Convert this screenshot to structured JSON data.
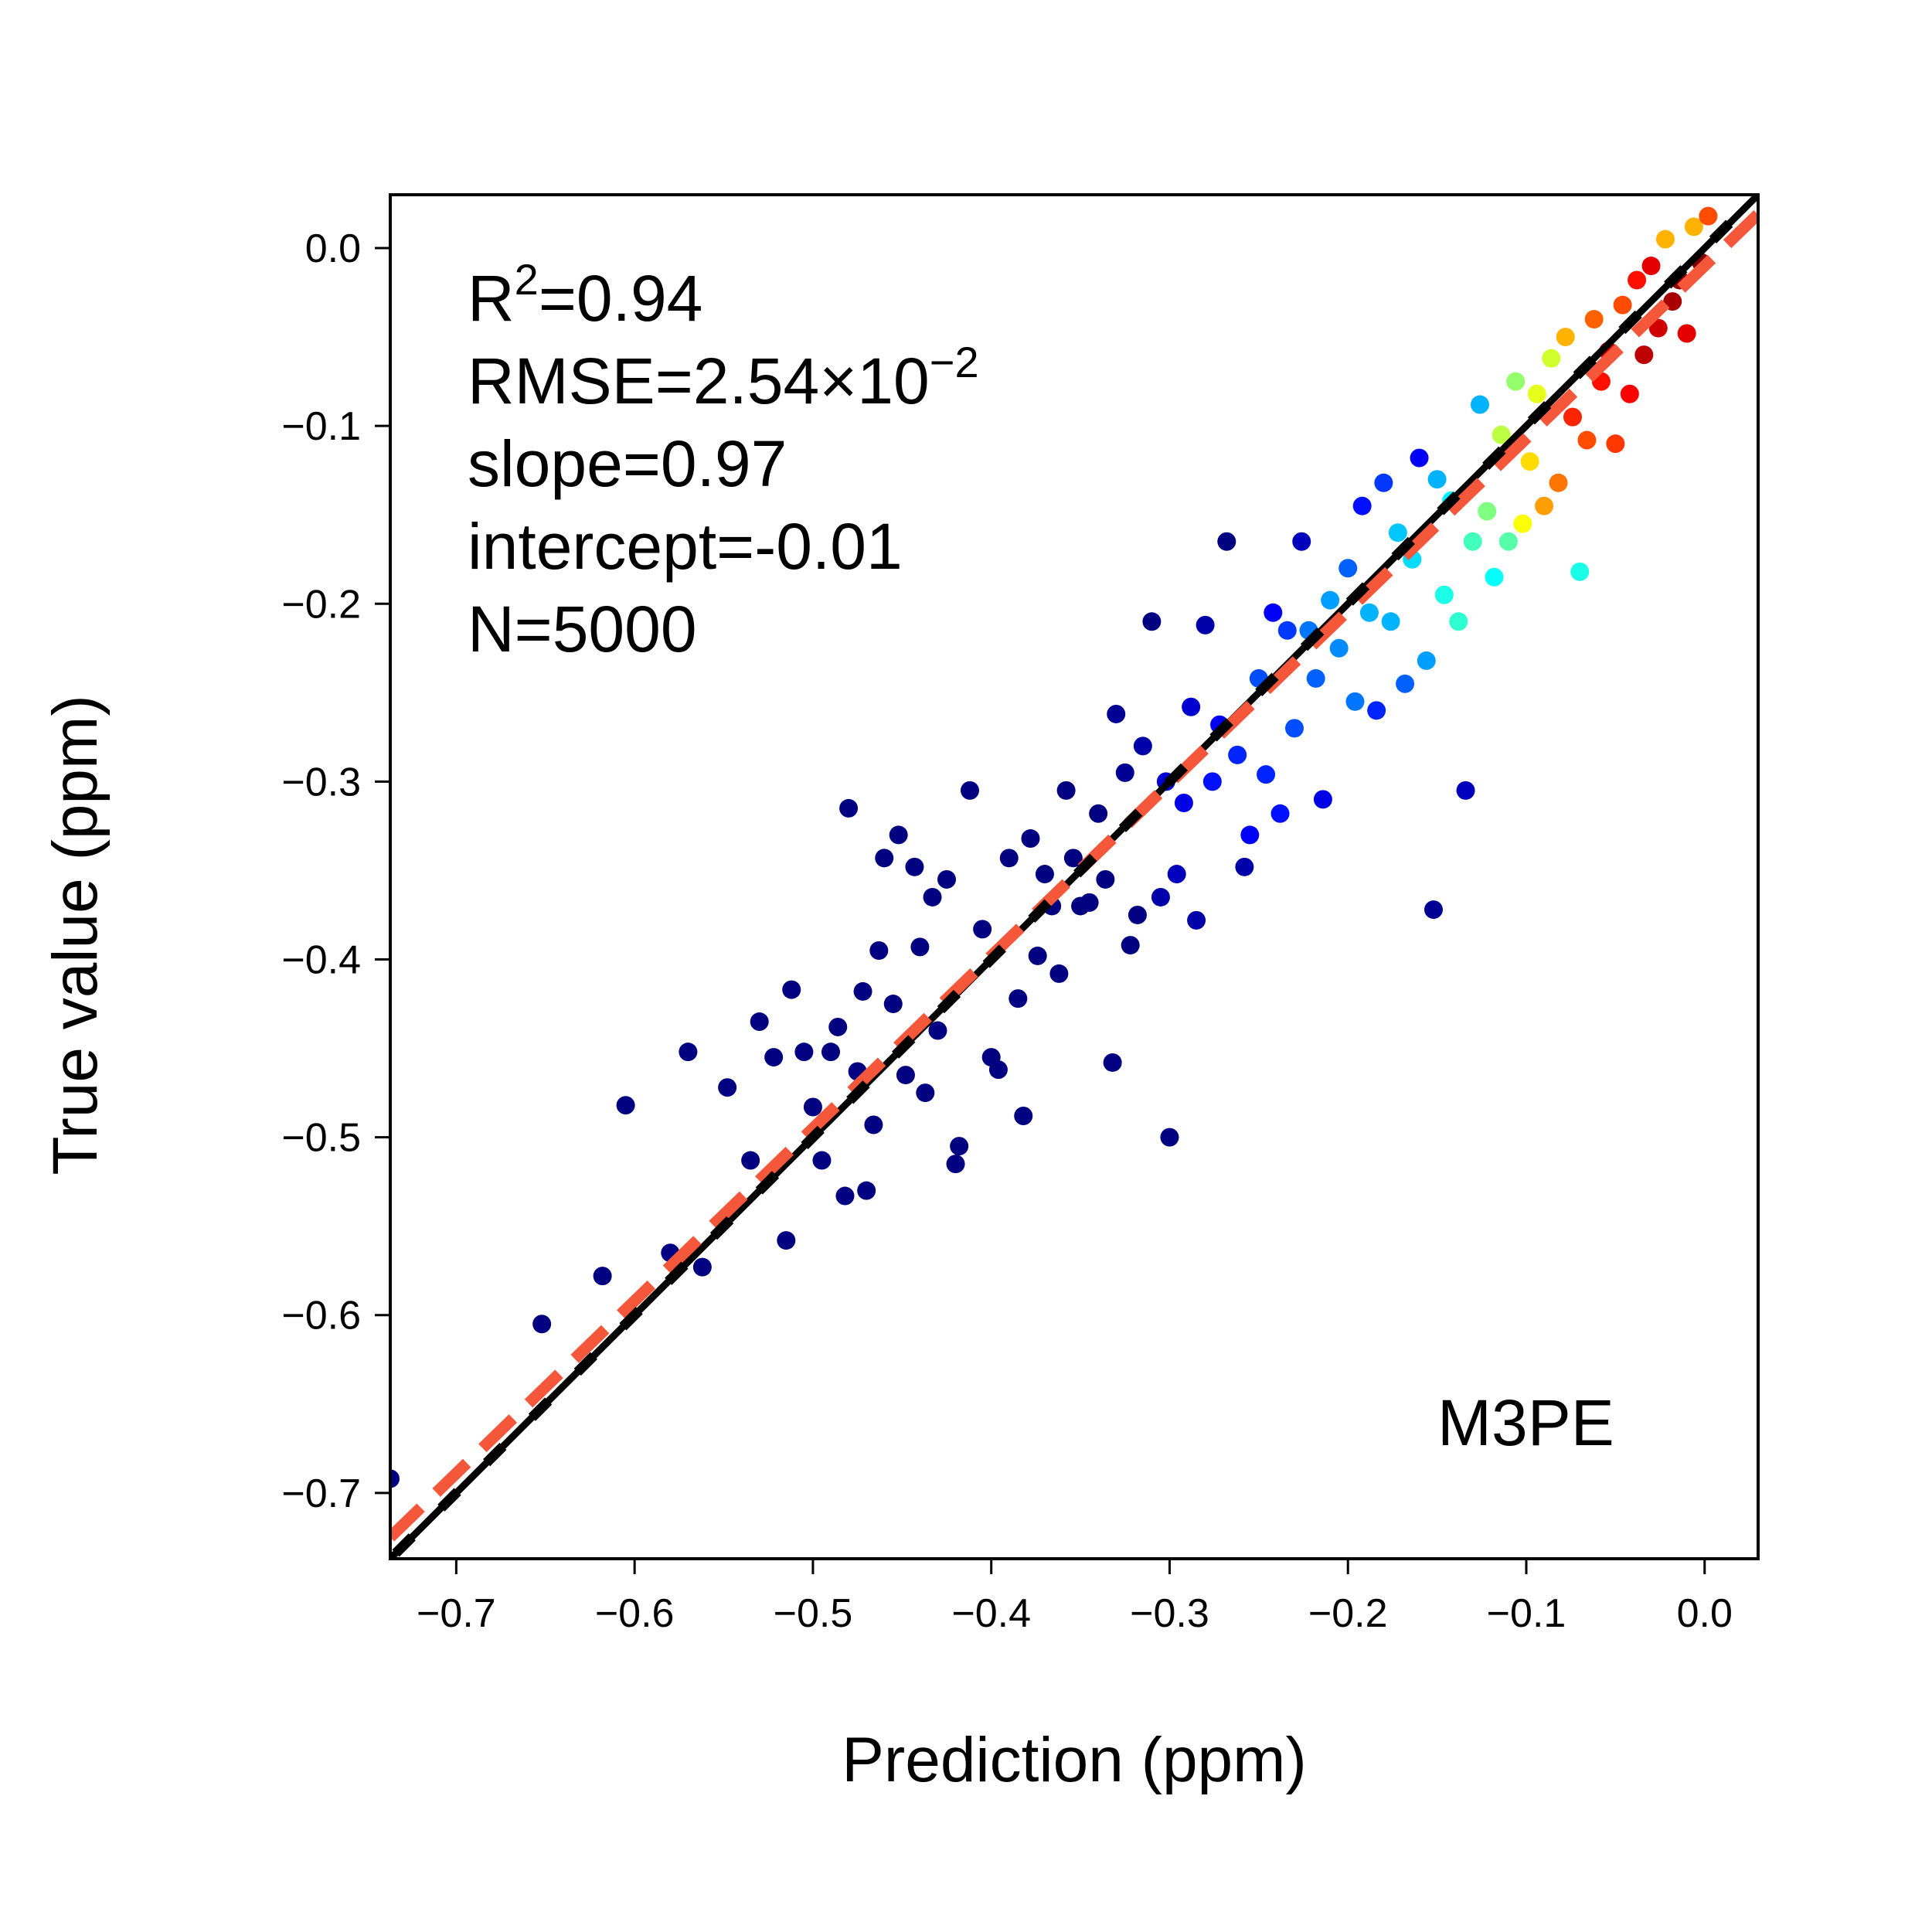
{
  "chart_data": {
    "type": "scatter",
    "title": "",
    "xlabel": "Prediction (ppm)",
    "ylabel": "True value (ppm)",
    "xlim": [
      -0.737,
      0.03
    ],
    "ylim": [
      -0.737,
      0.03
    ],
    "xticks": [
      -0.7,
      -0.6,
      -0.5,
      -0.4,
      -0.3,
      -0.2,
      -0.1,
      0.0
    ],
    "yticks": [
      -0.7,
      -0.6,
      -0.5,
      -0.4,
      -0.3,
      -0.2,
      -0.1,
      0.0
    ],
    "xtick_labels": [
      "−0.7",
      "−0.6",
      "−0.5",
      "−0.4",
      "−0.3",
      "−0.2",
      "−0.1",
      "0.0"
    ],
    "ytick_labels": [
      "−0.7",
      "−0.6",
      "−0.5",
      "−0.4",
      "−0.3",
      "−0.2",
      "−0.1",
      "0.0"
    ],
    "grid": false,
    "colormap": "jet (point density)",
    "stats": {
      "r2_prefix": "R",
      "r2_sup": "2",
      "r2_value": "=0.94",
      "rmse_prefix": "RMSE=2.54×10",
      "rmse_sup": "−2",
      "slope": "slope=0.97",
      "intercept": "intercept=-0.01",
      "n": "N=5000"
    },
    "model_label": "M3PE",
    "lines": [
      {
        "kind": "identity",
        "slope": 1.0,
        "intercept": 0.0,
        "color": "#000000",
        "style": "solid"
      },
      {
        "kind": "fit",
        "slope": 0.97,
        "intercept": -0.01,
        "color": "#f4573a",
        "style": "dashed"
      }
    ],
    "points_x": [
      -0.737,
      -0.652,
      -0.618,
      -0.605,
      -0.58,
      -0.562,
      -0.57,
      -0.548,
      -0.535,
      -0.53,
      -0.522,
      -0.515,
      -0.512,
      -0.505,
      -0.5,
      -0.495,
      -0.49,
      -0.486,
      -0.482,
      -0.48,
      -0.475,
      -0.472,
      -0.47,
      -0.466,
      -0.463,
      -0.46,
      -0.455,
      -0.452,
      -0.448,
      -0.443,
      -0.44,
      -0.437,
      -0.433,
      -0.43,
      -0.425,
      -0.42,
      -0.418,
      -0.412,
      -0.405,
      -0.4,
      -0.396,
      -0.39,
      -0.385,
      -0.382,
      -0.378,
      -0.374,
      -0.37,
      -0.366,
      -0.362,
      -0.358,
      -0.354,
      -0.35,
      -0.345,
      -0.34,
      -0.336,
      -0.332,
      -0.33,
      -0.325,
      -0.322,
      -0.318,
      -0.315,
      -0.31,
      -0.305,
      -0.302,
      -0.3,
      -0.296,
      -0.292,
      -0.288,
      -0.285,
      -0.28,
      -0.276,
      -0.272,
      -0.268,
      -0.262,
      -0.258,
      -0.255,
      -0.25,
      -0.246,
      -0.242,
      -0.238,
      -0.234,
      -0.23,
      -0.226,
      -0.222,
      -0.218,
      -0.214,
      -0.21,
      -0.205,
      -0.2,
      -0.196,
      -0.192,
      -0.188,
      -0.184,
      -0.18,
      -0.176,
      -0.172,
      -0.168,
      -0.164,
      -0.16,
      -0.156,
      -0.152,
      -0.15,
      -0.146,
      -0.142,
      -0.138,
      -0.134,
      -0.13,
      -0.126,
      -0.122,
      -0.118,
      -0.114,
      -0.11,
      -0.106,
      -0.102,
      -0.098,
      -0.094,
      -0.09,
      -0.086,
      -0.082,
      -0.078,
      -0.074,
      -0.07,
      -0.066,
      -0.062,
      -0.058,
      -0.054,
      -0.05,
      -0.046,
      -0.042,
      -0.038,
      -0.034,
      -0.03,
      -0.026,
      -0.022,
      -0.018,
      -0.014,
      -0.01,
      -0.006,
      -0.002,
      0.002
    ],
    "points_y": [
      -0.692,
      -0.605,
      -0.578,
      -0.482,
      -0.565,
      -0.573,
      -0.452,
      -0.472,
      -0.513,
      -0.435,
      -0.455,
      -0.558,
      -0.417,
      -0.452,
      -0.483,
      -0.513,
      -0.452,
      -0.438,
      -0.533,
      -0.315,
      -0.463,
      -0.418,
      -0.53,
      -0.493,
      -0.395,
      -0.343,
      -0.425,
      -0.33,
      -0.465,
      -0.348,
      -0.393,
      -0.475,
      -0.365,
      -0.44,
      -0.355,
      -0.515,
      -0.505,
      -0.305,
      -0.383,
      -0.455,
      -0.462,
      -0.343,
      -0.422,
      -0.488,
      -0.332,
      -0.398,
      -0.352,
      -0.37,
      -0.408,
      -0.305,
      -0.343,
      -0.37,
      -0.368,
      -0.318,
      -0.355,
      -0.458,
      -0.262,
      -0.295,
      -0.392,
      -0.375,
      -0.28,
      -0.21,
      -0.365,
      -0.3,
      -0.5,
      -0.352,
      -0.312,
      -0.258,
      -0.378,
      -0.212,
      -0.3,
      -0.268,
      -0.165,
      -0.285,
      -0.348,
      -0.33,
      -0.242,
      -0.296,
      -0.205,
      -0.318,
      -0.215,
      -0.27,
      -0.165,
      -0.215,
      -0.242,
      -0.31,
      -0.198,
      -0.225,
      -0.18,
      -0.255,
      -0.145,
      -0.205,
      -0.26,
      -0.132,
      -0.21,
      -0.16,
      -0.245,
      -0.175,
      -0.118,
      -0.232,
      -0.372,
      -0.13,
      -0.195,
      -0.142,
      -0.21,
      -0.305,
      -0.165,
      -0.088,
      -0.148,
      -0.185,
      -0.105,
      -0.165,
      -0.075,
      -0.155,
      -0.12,
      -0.082,
      -0.145,
      -0.062,
      -0.132,
      -0.05,
      -0.095,
      -0.182,
      -0.108,
      -0.04,
      -0.075,
      -0.058,
      -0.11,
      -0.032,
      -0.082,
      -0.018,
      -0.06,
      -0.01,
      -0.045,
      0.005,
      -0.03,
      -0.018,
      -0.048,
      0.012,
      -0.008,
      0.018
    ],
    "points_density": [
      0.0,
      0.0,
      0.0,
      0.0,
      0.0,
      0.0,
      0.0,
      0.0,
      0.0,
      0.0,
      0.0,
      0.0,
      0.0,
      0.0,
      0.0,
      0.0,
      0.0,
      0.0,
      0.0,
      0.0,
      0.0,
      0.0,
      0.0,
      0.0,
      0.0,
      0.0,
      0.0,
      0.0,
      0.0,
      0.0,
      0.0,
      0.0,
      0.0,
      0.0,
      0.0,
      0.0,
      0.0,
      0.0,
      0.0,
      0.0,
      0.0,
      0.0,
      0.0,
      0.0,
      0.0,
      0.0,
      0.0,
      0.0,
      0.0,
      0.0,
      0.0,
      0.0,
      0.0,
      0.0,
      0.0,
      0.0,
      0.02,
      0.02,
      0.0,
      0.0,
      0.04,
      0.0,
      0.04,
      0.08,
      0.0,
      0.06,
      0.1,
      0.08,
      0.04,
      0.04,
      0.14,
      0.12,
      0.0,
      0.16,
      0.04,
      0.12,
      0.2,
      0.16,
      0.12,
      0.14,
      0.18,
      0.2,
      0.06,
      0.24,
      0.22,
      0.1,
      0.28,
      0.26,
      0.22,
      0.24,
      0.14,
      0.3,
      0.16,
      0.18,
      0.3,
      0.32,
      0.22,
      0.34,
      0.12,
      0.28,
      0.02,
      0.3,
      0.4,
      0.36,
      0.42,
      0.06,
      0.44,
      0.3,
      0.5,
      0.38,
      0.56,
      0.46,
      0.52,
      0.62,
      0.66,
      0.6,
      0.72,
      0.58,
      0.76,
      0.7,
      0.84,
      0.4,
      0.8,
      0.78,
      0.86,
      0.9,
      0.82,
      0.8,
      0.88,
      0.86,
      0.94,
      0.9,
      0.92,
      0.7,
      0.96,
      0.98,
      0.9,
      0.7,
      1.0,
      0.8
    ]
  }
}
